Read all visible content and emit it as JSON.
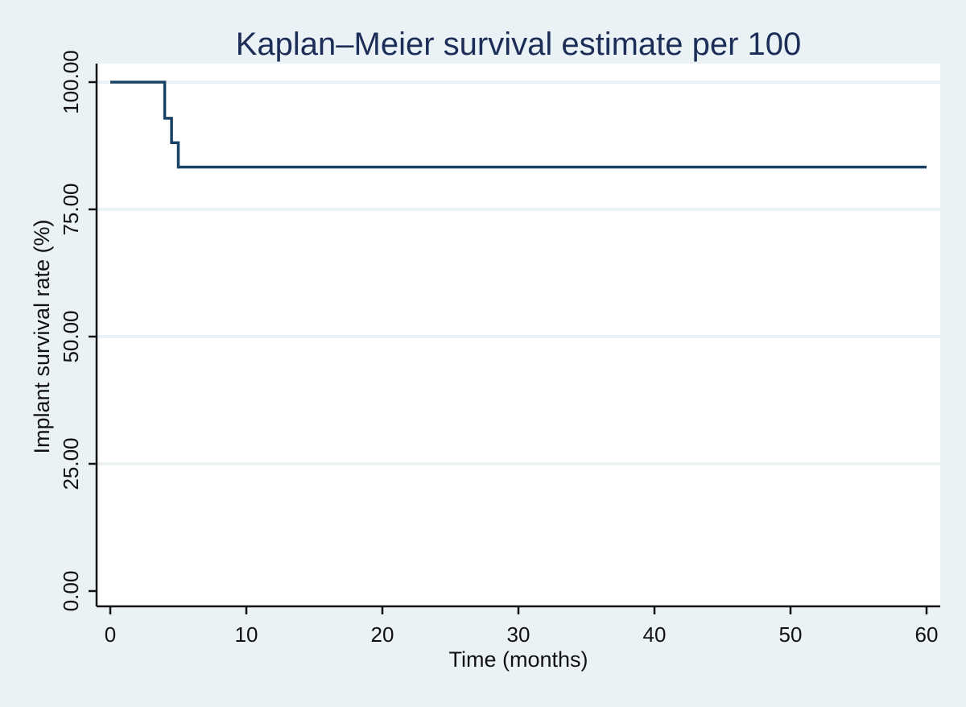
{
  "chart_data": {
    "type": "line",
    "step": true,
    "title": "Kaplan–Meier survival estimate per 100",
    "xlabel": "Time (months)",
    "ylabel": "Implant survival rate (%)",
    "xlim": [
      0,
      60
    ],
    "ylim": [
      0,
      100
    ],
    "xticks": [
      0,
      10,
      20,
      30,
      40,
      50,
      60
    ],
    "yticks": [
      0,
      25,
      50,
      75,
      100
    ],
    "xtick_labels": [
      "0",
      "10",
      "20",
      "30",
      "40",
      "50",
      "60"
    ],
    "ytick_labels": [
      "0.00",
      "25.00",
      "50.00",
      "75.00",
      "100.00"
    ],
    "grid": true,
    "legend": "none",
    "series": [
      {
        "x": [
          0,
          4,
          4,
          4.5,
          4.5,
          5,
          5,
          60
        ],
        "y": [
          100,
          100,
          92.9,
          92.9,
          88.1,
          88.1,
          83.3,
          83.3
        ]
      }
    ],
    "colors": {
      "background": "#eaf2f6",
      "plot_area": "#ffffff",
      "grid": "#eaf2f6",
      "line": "#1a4264",
      "title": "#1c2d57"
    }
  }
}
